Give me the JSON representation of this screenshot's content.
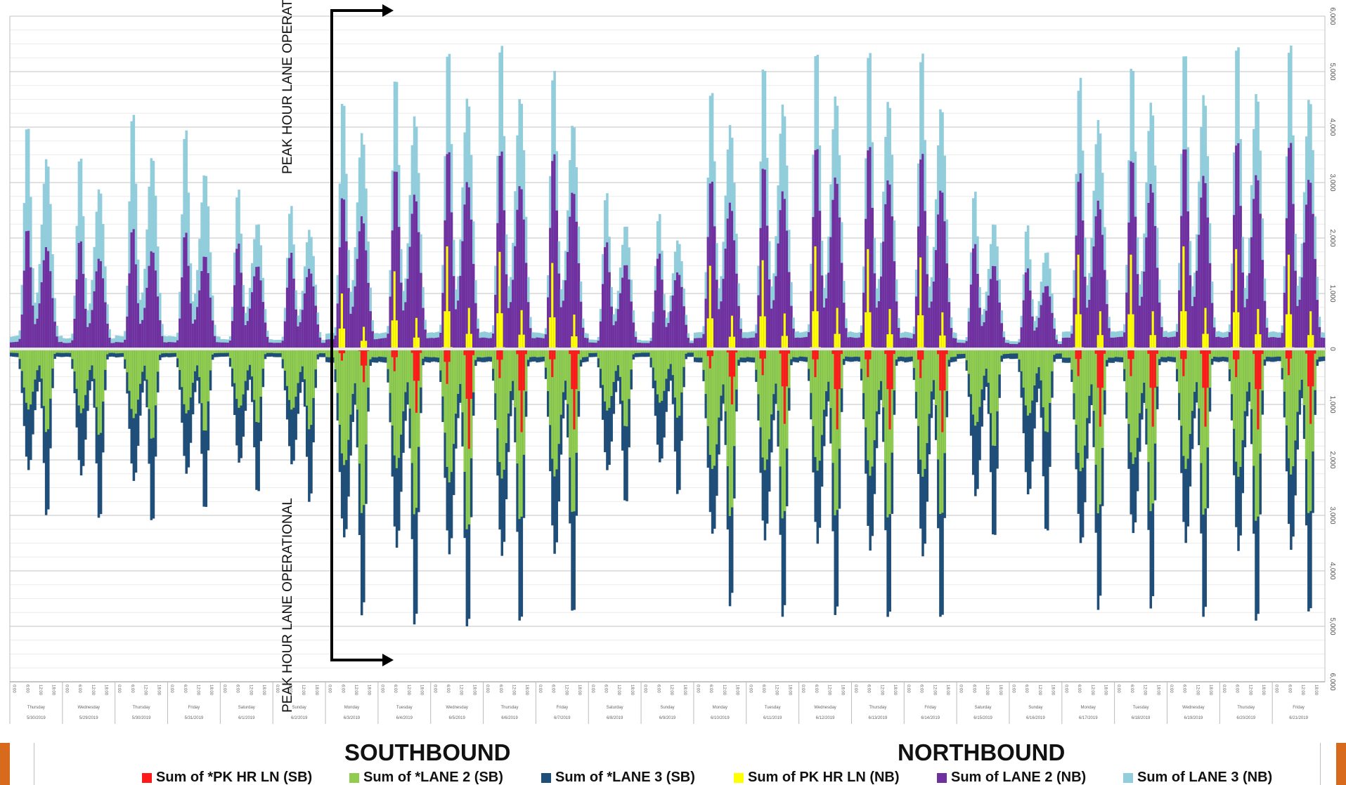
{
  "chart_data": {
    "type": "bar",
    "orientation": "diverging-stacked",
    "grid": true,
    "y_axis": {
      "position": "right",
      "range": [
        -6000,
        6000
      ],
      "tick_labels": [
        "6,000",
        "5,000",
        "4,000",
        "3,000",
        "2,000",
        "1,000",
        "0",
        "1,000",
        "2,000",
        "3,000",
        "4,000",
        "5,000",
        "6,000"
      ]
    },
    "days": [
      {
        "day": "Thursday",
        "date": "5/30/2019"
      },
      {
        "day": "Wednesday",
        "date": "5/29/2019"
      },
      {
        "day": "Thursday",
        "date": "5/30/2019"
      },
      {
        "day": "Friday",
        "date": "5/31/2019"
      },
      {
        "day": "Saturday",
        "date": "6/1/2019"
      },
      {
        "day": "Sunday",
        "date": "6/2/2019"
      },
      {
        "day": "Monday",
        "date": "6/3/2019"
      },
      {
        "day": "Tuesday",
        "date": "6/4/2019"
      },
      {
        "day": "Wednesday",
        "date": "6/5/2019"
      },
      {
        "day": "Thursday",
        "date": "6/6/2019"
      },
      {
        "day": "Friday",
        "date": "6/7/2019"
      },
      {
        "day": "Saturday",
        "date": "6/8/2019"
      },
      {
        "day": "Sunday",
        "date": "6/9/2019"
      },
      {
        "day": "Monday",
        "date": "6/10/2019"
      },
      {
        "day": "Tuesday",
        "date": "6/11/2019"
      },
      {
        "day": "Wednesday",
        "date": "6/12/2019"
      },
      {
        "day": "Thursday",
        "date": "6/13/2019"
      },
      {
        "day": "Friday",
        "date": "6/14/2019"
      },
      {
        "day": "Saturday",
        "date": "6/15/2019"
      },
      {
        "day": "Sunday",
        "date": "6/16/2019"
      },
      {
        "day": "Monday",
        "date": "6/17/2019"
      },
      {
        "day": "Tuesday",
        "date": "6/18/2019"
      },
      {
        "day": "Wednesday",
        "date": "6/19/2019"
      },
      {
        "day": "Thursday",
        "date": "6/20/2019"
      },
      {
        "day": "Friday",
        "date": "6/21/2019"
      }
    ],
    "hour_tick_labels": [
      "0:00",
      "6:00",
      "12:00",
      "18:00"
    ],
    "daily_peaks": {
      "nb_total": [
        4100,
        3450,
        4200,
        3950,
        2950,
        2750,
        4800,
        5050,
        5400,
        5450,
        5000,
        2850,
        2550,
        5050,
        5350,
        5450,
        5350,
        5300,
        2850,
        2300,
        5250,
        5450,
        5500,
        5500,
        5450
      ],
      "nb_lane2": [
        2200,
        1950,
        2150,
        2100,
        1950,
        1850,
        2950,
        3350,
        3600,
        3550,
        3500,
        1950,
        1800,
        3300,
        3450,
        3700,
        3650,
        3500,
        1900,
        1500,
        3400,
        3650,
        3750,
        3750,
        3700
      ],
      "nb_pk_hr_ln": [
        0,
        0,
        0,
        0,
        0,
        0,
        1000,
        1400,
        1850,
        1750,
        1550,
        0,
        0,
        1500,
        1600,
        1850,
        1800,
        1650,
        0,
        0,
        1700,
        1700,
        1850,
        1800,
        1700
      ],
      "sb_total": [
        3000,
        3050,
        3150,
        3000,
        2800,
        2950,
        4950,
        5000,
        5000,
        4950,
        4900,
        2950,
        2850,
        4850,
        4900,
        4800,
        4850,
        4950,
        3550,
        3600,
        5000,
        4800,
        4850,
        4900,
        4800
      ],
      "sb_lane2": [
        1500,
        1550,
        1650,
        1550,
        1450,
        1550,
        3050,
        3000,
        3250,
        3100,
        3050,
        1500,
        1350,
        3150,
        3100,
        3000,
        3050,
        3050,
        1850,
        1650,
        3150,
        3000,
        3000,
        3100,
        3000
      ],
      "sb_pk_hr_ln": [
        0,
        0,
        0,
        0,
        0,
        0,
        600,
        1150,
        1800,
        1500,
        1450,
        0,
        0,
        1000,
        1350,
        1450,
        1450,
        1500,
        0,
        0,
        1400,
        1400,
        1400,
        1450,
        1350
      ]
    },
    "series": [
      {
        "name": "Sum of *PK HR LN (SB)",
        "color": "#ff1a1a"
      },
      {
        "name": "Sum of *LANE 2 (SB)",
        "color": "#8fcc4f"
      },
      {
        "name": "Sum of *LANE 3 (SB)",
        "color": "#1f4e79"
      },
      {
        "name": "Sum of PK HR LN (NB)",
        "color": "#ffff00"
      },
      {
        "name": "Sum of LANE 2 (NB)",
        "color": "#7030a0"
      },
      {
        "name": "Sum of LANE 3 (NB)",
        "color": "#92cddc"
      }
    ],
    "annotations": {
      "top": "PEAK HOUR LANE OPERATIONAL",
      "bottom": "PEAK HOUR LANE OPERATIONAL"
    },
    "group_titles": {
      "left": "SOUTHBOUND",
      "right": "NORTHBOUND"
    }
  },
  "colors": {
    "accent": "#d86a1e",
    "grid": "#d9d9d9",
    "zero_line": "#e8e8e8",
    "marker": "#000000"
  }
}
